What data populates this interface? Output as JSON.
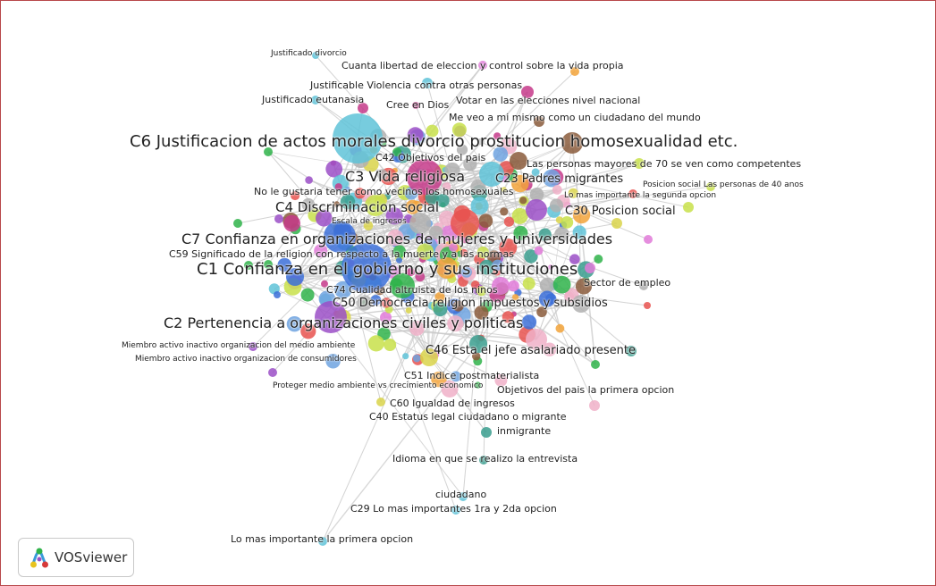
{
  "app": {
    "logo_text": "VOSviewer"
  },
  "colors": {
    "frame": "#b8474a",
    "edge": "#c8c8c8",
    "background": "#ffffff"
  },
  "network": {
    "labels": [
      "Justificado  divorcio",
      "Cuanta libertad de eleccion y control sobre la vida propia",
      "Justificable  Violencia contra otras personas",
      "Justificado  eutanasia",
      "Cree en  Dios",
      "Votar en las elecciones  nivel nacional",
      "Me veo a mi mismo como un ciudadano del mundo",
      "C6 Justificacion de actos morales divorcio prostitucion homosexualidad etc.",
      "C42 Objetivos del pais",
      "Las personas mayores de 70  se ven como competentes",
      "C3 Vida religiosa",
      "C23 Padres migrantes",
      "Posicion social  Las personas de 40 anos",
      "No le gustaria tener como vecinos  los homosexuales",
      "Lo mas importante  la segunda opcion",
      "C4 Discriminacion social",
      "C30 Posicion social",
      "Escala de ingresos",
      "C7 Confianza en organizaciones de mujeres y universidades",
      "C59 Significado de la religion con respecto a la muerte y a las normas",
      "C1 Confianza en el gobierno y sus instituciones",
      "Sector de empleo",
      "C74 Cualidad altruista de los ninos",
      "C50 Democracia religion impuestos y subsidios",
      "C2 Pertenencia a organizaciones civiles y politicas",
      "C46 Esta el jefe asalariado presente",
      "Miembro activo inactivo  organizacion del medio ambiente",
      "Miembro activo inactivo  organizacion de consumidores",
      "C51 Indice postmaterialista",
      "Proteger medio ambiente vs crecimiento economico",
      "Objetivos del pais  la primera opcion",
      "C60 Igualdad de ingresos",
      "C40 Estatus legal ciudadano o migrante",
      "inmigrante",
      "Idioma en que se realizo la entrevista",
      "ciudadano",
      "C29 Lo mas importantes 1ra y 2da opcion",
      "Lo mas importante  la primera opcion"
    ]
  }
}
